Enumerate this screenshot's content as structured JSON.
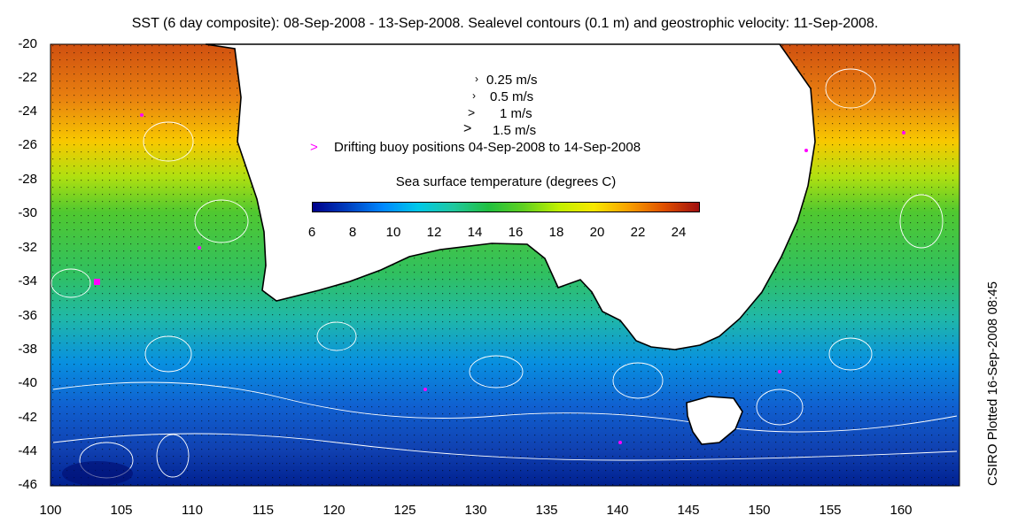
{
  "title": "SST (6 day composite): 08-Sep-2008 - 13-Sep-2008. Sealevel contours (0.1 m) and geostrophic velocity: 11-Sep-2008.",
  "credit": "CSIRO Plotted 16-Sep-2008 08:45",
  "map": {
    "lon_range": [
      100,
      164
    ],
    "lat_range": [
      -46,
      -20
    ],
    "x_ticks": [
      "100",
      "105",
      "110",
      "115",
      "120",
      "125",
      "130",
      "135",
      "140",
      "145",
      "150",
      "155",
      "160"
    ],
    "y_ticks": [
      "-20",
      "-22",
      "-24",
      "-26",
      "-28",
      "-30",
      "-32",
      "-34",
      "-36",
      "-38",
      "-40",
      "-42",
      "-44",
      "-46"
    ],
    "land_color": "#ffffff",
    "coast_color": "#000000",
    "contour_color": "#ffffff",
    "vector_color": "#000000"
  },
  "legend": {
    "speeds": [
      {
        "label": "0.25 m/s",
        "icon": "small-arrow-icon"
      },
      {
        "label": "0.5 m/s",
        "icon": "small-arrow-icon"
      },
      {
        "label": "1 m/s",
        "icon": "arrow-icon"
      },
      {
        "label": "1.5 m/s",
        "icon": "large-arrow-icon"
      }
    ],
    "buoy_marker": ">",
    "buoy_color": "#ff00ff",
    "buoy_label": "Drifting buoy positions 04-Sep-2008 to 14-Sep-2008"
  },
  "colorbar": {
    "title": "Sea surface temperature (degrees C)",
    "range": [
      6,
      25
    ],
    "ticks": [
      "6",
      "8",
      "10",
      "12",
      "14",
      "16",
      "18",
      "20",
      "22",
      "24"
    ],
    "colors": [
      "#00008b",
      "#0040c0",
      "#0088ff",
      "#00c8e8",
      "#20c8a0",
      "#20c040",
      "#60d020",
      "#c0f000",
      "#f8e800",
      "#f8a000",
      "#e05000",
      "#a01010"
    ]
  }
}
